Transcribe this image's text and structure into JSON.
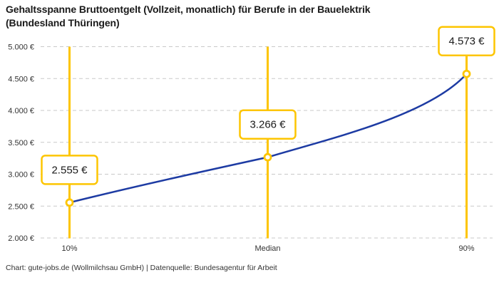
{
  "title": {
    "line1": "Gehaltsspanne Bruttoentgelt (Vollzeit, monatlich) für Berufe in der Bauelektrik",
    "line2": "(Bundesland Thüringen)"
  },
  "footer": "Chart: gute-jobs.de (Wollmilchsau GmbH) | Datenquelle: Bundesagentur für Arbeit",
  "chart_data": {
    "type": "line",
    "categories": [
      "10%",
      "Median",
      "90%"
    ],
    "values": [
      2555,
      3266,
      4573
    ],
    "point_labels": [
      "2.555 €",
      "3.266 €",
      "4.573 €"
    ],
    "y_ticks": [
      5000,
      4500,
      4000,
      3500,
      3000,
      2500,
      2000
    ],
    "y_tick_labels": [
      "5.000 €",
      "4.500 €",
      "4.000 €",
      "3.500 €",
      "3.000 €",
      "2.500 €",
      "2.000 €"
    ],
    "ylim": [
      2000,
      5000
    ],
    "grid": "horizontal-dashed",
    "legend": "none",
    "colors": {
      "line": "#1D3BA3",
      "accent": "#FDC500",
      "grid": "#C9C9C9",
      "title_text": "#1A1A1A",
      "axis_text": "#333333",
      "label_text": "#1A1A1A",
      "background": "#FFFFFF"
    }
  }
}
